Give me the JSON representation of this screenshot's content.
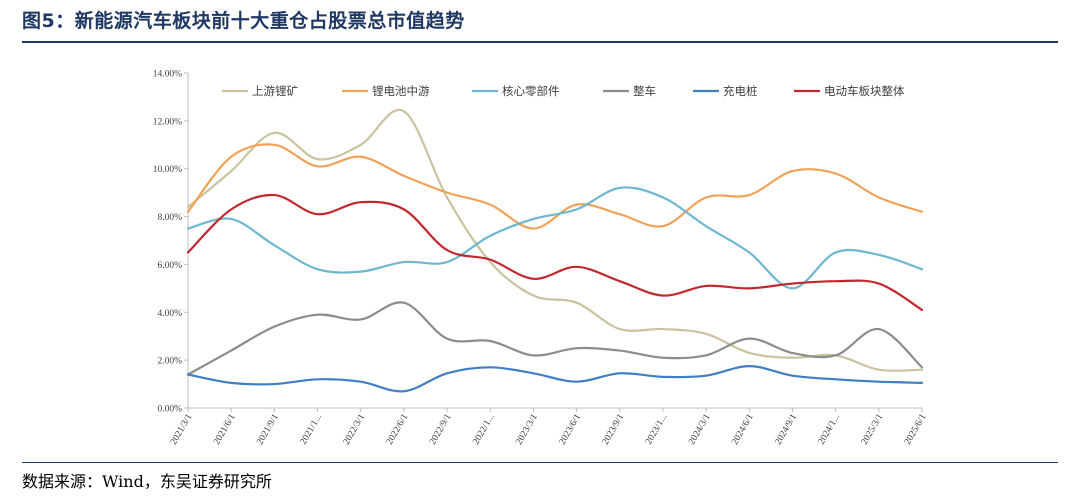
{
  "header": {
    "title": "图5：新能源汽车板块前十大重仓占股票总市值趋势"
  },
  "footer": {
    "source": "数据来源：Wind，东吴证券研究所"
  },
  "chart_data": {
    "type": "line",
    "x": [
      "2021/3/1",
      "2021/6/1",
      "2021/9/1",
      "2021/1...",
      "2022/3/1",
      "2022/6/1",
      "2022/9/1",
      "2022/1...",
      "2023/3/1",
      "2023/6/1",
      "2023/9/1",
      "2023/1...",
      "2024/3/1",
      "2024/6/1",
      "2024/9/1",
      "2024/1...",
      "2025/3/1",
      "2025/6/1"
    ],
    "yticks": [
      "0.00%",
      "2.00%",
      "4.00%",
      "6.00%",
      "8.00%",
      "10.00%",
      "12.00%",
      "14.00%"
    ],
    "ylim": [
      0,
      14
    ],
    "grid": false,
    "legend_position": "top",
    "series": [
      {
        "name": "上游锂矿",
        "color": "#c9c3a0",
        "values": [
          8.4,
          9.9,
          11.5,
          10.4,
          11.0,
          12.4,
          8.8,
          6.1,
          4.7,
          4.4,
          3.3,
          3.3,
          3.1,
          2.3,
          2.1,
          2.2,
          1.6,
          1.6
        ]
      },
      {
        "name": "锂电池中游",
        "color": "#f0a259",
        "values": [
          8.2,
          10.5,
          11.0,
          10.1,
          10.5,
          9.7,
          9.0,
          8.5,
          7.5,
          8.5,
          8.1,
          7.6,
          8.8,
          8.9,
          9.9,
          9.8,
          8.8,
          8.2
        ]
      },
      {
        "name": "核心零部件",
        "color": "#6fb6cf",
        "values": [
          7.5,
          7.9,
          6.8,
          5.8,
          5.7,
          6.1,
          6.1,
          7.2,
          7.9,
          8.3,
          9.2,
          8.8,
          7.6,
          6.5,
          5.0,
          6.5,
          6.4,
          5.8
        ]
      },
      {
        "name": "整车",
        "color": "#8c8c8c",
        "values": [
          1.4,
          2.4,
          3.4,
          3.9,
          3.7,
          4.4,
          2.9,
          2.8,
          2.2,
          2.5,
          2.4,
          2.1,
          2.2,
          2.9,
          2.3,
          2.2,
          3.3,
          1.7
        ]
      },
      {
        "name": "充电桩",
        "color": "#3f7fc4",
        "values": [
          1.4,
          1.05,
          1.0,
          1.2,
          1.1,
          0.7,
          1.45,
          1.7,
          1.45,
          1.1,
          1.45,
          1.3,
          1.35,
          1.75,
          1.35,
          1.2,
          1.1,
          1.05
        ]
      },
      {
        "name": "电动车板块整体",
        "color": "#c0282d",
        "values": [
          6.5,
          8.3,
          8.9,
          8.1,
          8.6,
          8.3,
          6.6,
          6.2,
          5.4,
          5.9,
          5.3,
          4.7,
          5.1,
          5.0,
          5.2,
          5.3,
          5.2,
          4.1
        ]
      }
    ]
  }
}
